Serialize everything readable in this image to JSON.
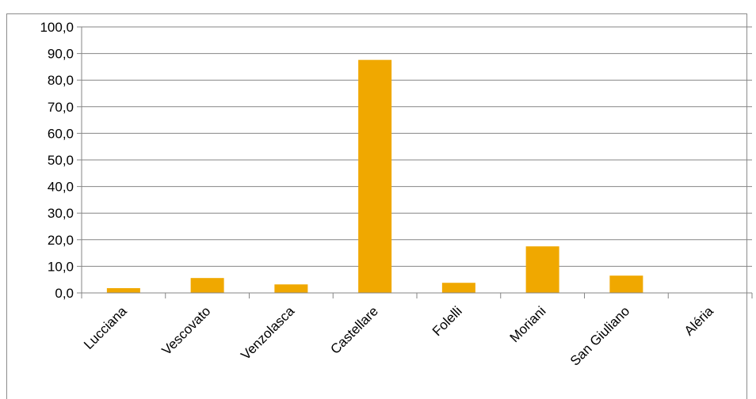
{
  "chart_data": {
    "type": "bar",
    "categories": [
      "Lucciana",
      "Vescovato",
      "Venzolasca",
      "Castellare",
      "Folelli",
      "Moriani",
      "San Giuliano",
      "Aléria"
    ],
    "values": [
      1.8,
      5.6,
      3.2,
      87.6,
      3.8,
      17.5,
      6.5,
      0.0
    ],
    "ylim": [
      0,
      100
    ],
    "yticks": [
      "0,0",
      "10,0",
      "20,0",
      "30,0",
      "40,0",
      "50,0",
      "60,0",
      "70,0",
      "80,0",
      "90,0",
      "100,0"
    ],
    "grid": true,
    "legend": "none",
    "title": "",
    "xlabel": "",
    "ylabel": "",
    "colors": {
      "bar": "#F0A800",
      "grid": "#868686",
      "axis": "#868686"
    }
  }
}
